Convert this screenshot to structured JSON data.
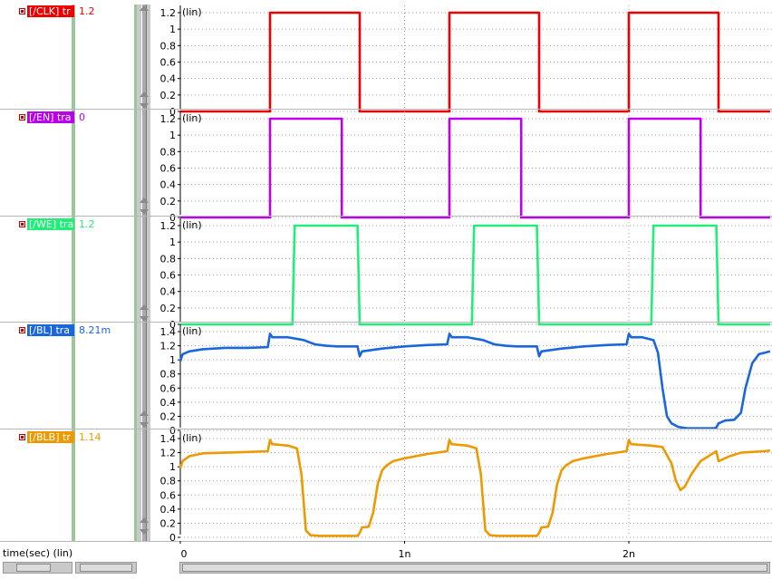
{
  "signals": [
    {
      "name": "[/CLK] tr",
      "value": "1.2",
      "color": "#ee0000"
    },
    {
      "name": "[/EN] tra",
      "value": "0",
      "color": "#bb00ee"
    },
    {
      "name": "[/WE] tra",
      "value": "1.2",
      "color": "#22ee77"
    },
    {
      "name": "[/BL] tra",
      "value": "8.21m",
      "color": "#1a66dd"
    },
    {
      "name": "[/BLB] tr",
      "value": "1.14",
      "color": "#ee9900"
    }
  ],
  "xaxis_label": "time(sec) (lin)",
  "chart_data": {
    "type": "line",
    "xlim": [
      0,
      2.63
    ],
    "x_unit": "ns",
    "x_ticks": [
      {
        "value": 0,
        "label": "0"
      },
      {
        "value": 1,
        "label": "1n"
      },
      {
        "value": 2,
        "label": "2n"
      }
    ],
    "grid": true,
    "panels": [
      {
        "signal": "[/CLK]",
        "scale_label": "(lin)",
        "ylim": [
          0,
          1.2
        ],
        "y_ticks": [
          0,
          0.2,
          0.4,
          0.6,
          0.8,
          1,
          1.2
        ],
        "color": "#ee0000",
        "x": [
          0,
          0.4,
          0.4,
          0.8,
          0.8,
          1.2,
          1.2,
          1.6,
          1.6,
          2.0,
          2.0,
          2.4,
          2.4,
          2.63
        ],
        "y": [
          0,
          0,
          1.2,
          1.2,
          0,
          0,
          1.2,
          1.2,
          0,
          0,
          1.2,
          1.2,
          0,
          0
        ]
      },
      {
        "signal": "[/EN]",
        "scale_label": "(lin)",
        "ylim": [
          0,
          1.2
        ],
        "y_ticks": [
          0,
          0.2,
          0.4,
          0.6,
          0.8,
          1,
          1.2
        ],
        "color": "#bb00ee",
        "x": [
          0,
          0.4,
          0.4,
          0.72,
          0.72,
          1.2,
          1.2,
          1.52,
          1.52,
          2.0,
          2.0,
          2.32,
          2.32,
          2.63
        ],
        "y": [
          0,
          0,
          1.2,
          1.2,
          0,
          0,
          1.2,
          1.2,
          0,
          0,
          1.2,
          1.2,
          0,
          0
        ]
      },
      {
        "signal": "[/WE]",
        "scale_label": "(lin)",
        "ylim": [
          0,
          1.2
        ],
        "y_ticks": [
          0,
          0.2,
          0.4,
          0.6,
          0.8,
          1,
          1.2
        ],
        "color": "#22ee77",
        "x": [
          0,
          0.5,
          0.51,
          0.79,
          0.8,
          1.3,
          1.31,
          1.59,
          1.6,
          2.1,
          2.11,
          2.39,
          2.4,
          2.63
        ],
        "y": [
          0,
          0,
          1.2,
          1.2,
          0,
          0,
          1.2,
          1.2,
          0,
          0,
          1.2,
          1.2,
          0,
          0
        ]
      },
      {
        "signal": "[/BL]",
        "scale_label": "(lin)",
        "ylim": [
          0,
          1.4
        ],
        "y_ticks": [
          0,
          0.2,
          0.4,
          0.6,
          0.8,
          1,
          1.2,
          1.4
        ],
        "color": "#1a66dd",
        "x": [
          0,
          0.01,
          0.04,
          0.1,
          0.2,
          0.3,
          0.39,
          0.4,
          0.41,
          0.48,
          0.55,
          0.6,
          0.65,
          0.7,
          0.79,
          0.8,
          0.81,
          0.9,
          1.0,
          1.1,
          1.19,
          1.2,
          1.21,
          1.28,
          1.35,
          1.4,
          1.45,
          1.5,
          1.59,
          1.6,
          1.61,
          1.7,
          1.8,
          1.9,
          1.99,
          2.0,
          2.01,
          2.06,
          2.11,
          2.13,
          2.15,
          2.17,
          2.19,
          2.22,
          2.26,
          2.3,
          2.38,
          2.39,
          2.4,
          2.43,
          2.47,
          2.5,
          2.52,
          2.55,
          2.58,
          2.63
        ],
        "y": [
          0.98,
          1.08,
          1.12,
          1.15,
          1.17,
          1.17,
          1.18,
          1.37,
          1.32,
          1.32,
          1.28,
          1.22,
          1.2,
          1.19,
          1.19,
          1.05,
          1.12,
          1.16,
          1.19,
          1.21,
          1.22,
          1.37,
          1.32,
          1.32,
          1.28,
          1.22,
          1.2,
          1.19,
          1.19,
          1.05,
          1.12,
          1.16,
          1.19,
          1.21,
          1.22,
          1.37,
          1.32,
          1.32,
          1.28,
          1.1,
          0.6,
          0.2,
          0.1,
          0.05,
          0.03,
          0.03,
          0.03,
          0.04,
          0.1,
          0.14,
          0.15,
          0.25,
          0.6,
          0.95,
          1.08,
          1.12
        ]
      },
      {
        "signal": "[/BLB]",
        "scale_label": "(lin)",
        "ylim": [
          0,
          1.4
        ],
        "y_ticks": [
          0,
          0.2,
          0.4,
          0.6,
          0.8,
          1,
          1.2,
          1.4
        ],
        "color": "#ee9900",
        "x": [
          0,
          0.01,
          0.04,
          0.1,
          0.2,
          0.3,
          0.39,
          0.4,
          0.41,
          0.48,
          0.52,
          0.54,
          0.56,
          0.58,
          0.62,
          0.7,
          0.79,
          0.8,
          0.81,
          0.84,
          0.86,
          0.88,
          0.9,
          0.92,
          0.95,
          1.0,
          1.1,
          1.19,
          1.2,
          1.21,
          1.28,
          1.32,
          1.34,
          1.36,
          1.38,
          1.42,
          1.5,
          1.59,
          1.6,
          1.61,
          1.64,
          1.66,
          1.68,
          1.7,
          1.72,
          1.75,
          1.8,
          1.9,
          1.99,
          2.0,
          2.01,
          2.1,
          2.15,
          2.19,
          2.21,
          2.23,
          2.25,
          2.28,
          2.32,
          2.38,
          2.39,
          2.4,
          2.45,
          2.5,
          2.6,
          2.63
        ],
        "y": [
          0.98,
          1.08,
          1.15,
          1.19,
          1.2,
          1.21,
          1.22,
          1.38,
          1.32,
          1.3,
          1.26,
          0.9,
          0.1,
          0.03,
          0.02,
          0.02,
          0.02,
          0.06,
          0.14,
          0.15,
          0.35,
          0.75,
          0.95,
          1.02,
          1.08,
          1.12,
          1.18,
          1.22,
          1.38,
          1.32,
          1.3,
          1.26,
          0.9,
          0.1,
          0.03,
          0.02,
          0.02,
          0.02,
          0.06,
          0.14,
          0.15,
          0.35,
          0.75,
          0.95,
          1.02,
          1.08,
          1.12,
          1.18,
          1.22,
          1.38,
          1.32,
          1.3,
          1.28,
          1.05,
          0.8,
          0.67,
          0.72,
          0.9,
          1.08,
          1.2,
          1.22,
          1.08,
          1.15,
          1.2,
          1.22,
          1.23
        ]
      }
    ]
  }
}
